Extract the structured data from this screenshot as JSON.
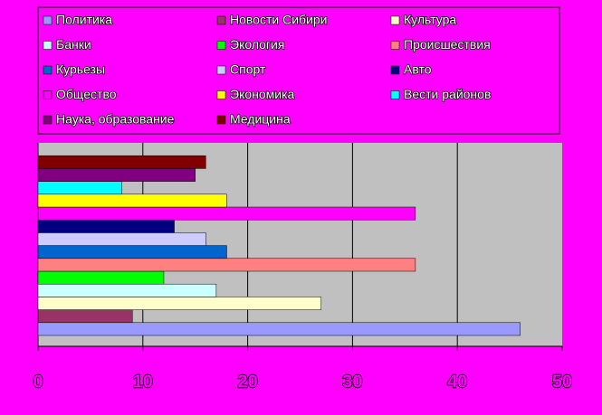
{
  "chart_data": {
    "type": "bar",
    "orientation": "horizontal",
    "series": [
      {
        "name": "Политика",
        "color": "#9999ff",
        "values": [
          46
        ]
      },
      {
        "name": "Новости Сибири",
        "color": "#993366",
        "values": [
          9
        ]
      },
      {
        "name": "Культура",
        "color": "#ffffcc",
        "values": [
          27
        ]
      },
      {
        "name": "Банки",
        "color": "#ccffff",
        "values": [
          17
        ]
      },
      {
        "name": "Экология",
        "color": "#00ff00",
        "values": [
          12
        ]
      },
      {
        "name": "Происшествия",
        "color": "#ff8080",
        "values": [
          36
        ]
      },
      {
        "name": "Курьезы",
        "color": "#0066cc",
        "values": [
          18
        ]
      },
      {
        "name": "Спорт",
        "color": "#ccccff",
        "values": [
          16
        ]
      },
      {
        "name": "Авто",
        "color": "#000080",
        "values": [
          13
        ]
      },
      {
        "name": "Общество",
        "color": "#ff00ff",
        "values": [
          36
        ]
      },
      {
        "name": "Экономика",
        "color": "#ffff00",
        "values": [
          18
        ]
      },
      {
        "name": "Вести районов",
        "color": "#00ffff",
        "values": [
          8
        ]
      },
      {
        "name": "Наука, образование",
        "color": "#800080",
        "values": [
          15
        ]
      },
      {
        "name": "Медицина",
        "color": "#800000",
        "values": [
          16
        ]
      }
    ],
    "xlim": [
      0,
      50
    ],
    "xticks": [
      0,
      10,
      20,
      30,
      40,
      50
    ],
    "grid": true,
    "legend": "top"
  }
}
